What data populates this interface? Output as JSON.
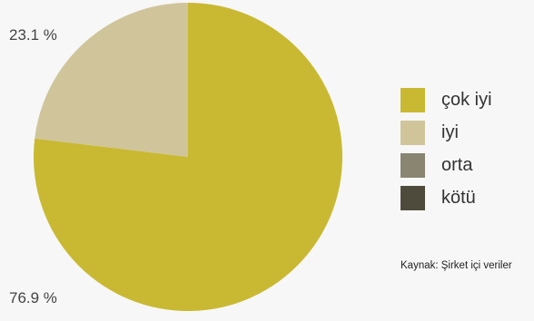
{
  "chart_data": {
    "type": "pie",
    "slices": [
      {
        "label": "çok iyi",
        "value": 76.9,
        "value_label": "76.9 %",
        "color": "#c9b932"
      },
      {
        "label": "iyi",
        "value": 23.1,
        "value_label": "23.1 %",
        "color": "#d0c59a"
      },
      {
        "label": "orta",
        "value": 0,
        "color": "#8a8570"
      },
      {
        "label": "kötü",
        "value": 0,
        "color": "#4e4b3d"
      }
    ],
    "legend": [
      "çok iyi",
      "iyi",
      "orta",
      "kötü"
    ],
    "legend_position": "right",
    "source": "Kaynak: Şirket içi veriler"
  }
}
